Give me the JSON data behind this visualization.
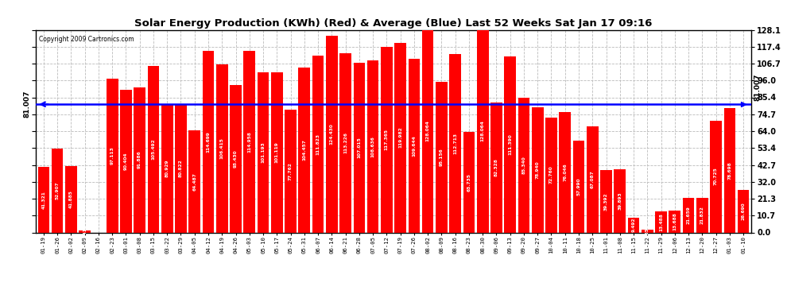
{
  "title": "Solar Energy Production (KWh) (Red) & Average (Blue) Last 52 Weeks Sat Jan 17 09:16",
  "copyright": "Copyright 2009 Cartronics.com",
  "average_value": 81.007,
  "bar_color": "#ff0000",
  "avg_line_color": "#0000ff",
  "background_color": "#ffffff",
  "grid_color": "#bbbbbb",
  "ylim": [
    0,
    128.1
  ],
  "yticks": [
    0.0,
    10.7,
    21.3,
    32.0,
    42.7,
    53.4,
    64.0,
    74.7,
    85.4,
    96.0,
    106.7,
    117.4,
    128.1
  ],
  "ytick_labels": [
    "0.0",
    "10.7",
    "21.3",
    "32.0",
    "42.7",
    "53.4",
    "64.0",
    "74.7",
    "85.4",
    "96.0",
    "106.7",
    "117.4",
    "128.1"
  ],
  "categories": [
    "01-19",
    "01-26",
    "02-02",
    "02-09",
    "02-16",
    "02-23",
    "03-01",
    "03-08",
    "03-15",
    "03-22",
    "03-29",
    "04-05",
    "04-12",
    "04-19",
    "04-26",
    "05-03",
    "05-10",
    "05-17",
    "05-24",
    "05-31",
    "06-07",
    "06-14",
    "06-21",
    "06-28",
    "07-05",
    "07-12",
    "07-19",
    "07-26",
    "08-02",
    "08-09",
    "08-16",
    "08-23",
    "08-30",
    "09-06",
    "09-13",
    "09-20",
    "09-27",
    "10-04",
    "10-11",
    "10-18",
    "10-25",
    "11-01",
    "11-08",
    "11-15",
    "11-22",
    "11-29",
    "12-06",
    "12-13",
    "12-20",
    "12-27",
    "01-03",
    "01-10"
  ],
  "values": [
    41.321,
    52.907,
    41.885,
    1.413,
    0.0,
    97.113,
    90.404,
    91.886,
    105.492,
    80.929,
    80.822,
    64.487,
    114.699,
    106.415,
    93.43,
    114.958,
    101.193,
    101.119,
    77.762,
    104.457,
    111.823,
    124.43,
    113.226,
    107.015,
    108.636,
    117.365,
    119.982,
    109.644,
    128.064,
    95.156,
    112.713,
    63.735,
    128.064,
    82.328,
    111.39,
    85.34,
    78.94,
    72.76,
    76.046,
    57.99,
    67.087,
    39.392,
    39.893,
    9.492,
    1.65,
    13.488,
    13.688,
    21.659,
    21.832,
    70.725,
    78.698,
    26.69
  ],
  "bar_labels": [
    "41.321",
    "52.907",
    "41.885",
    "1.413",
    "0.0",
    "97.113",
    "90.404",
    "91.886",
    "105.492",
    "80.929",
    "80.822",
    "64.487",
    "114.699",
    "106.415",
    "93.430",
    "114.958",
    "101.193",
    "101.119",
    "77.762",
    "104.457",
    "111.823",
    "124.430",
    "113.226",
    "107.015",
    "108.636",
    "117.365",
    "119.982",
    "109.644",
    "128.064",
    "95.156",
    "112.713",
    "63.735",
    "128.064",
    "82.328",
    "111.390",
    "85.340",
    "78.940",
    "72.760",
    "76.046",
    "57.990",
    "67.087",
    "39.392",
    "39.893",
    "9.492",
    "1.650",
    "13.488",
    "13.688",
    "21.659",
    "21.832",
    "70.725",
    "78.698",
    "26.690"
  ]
}
